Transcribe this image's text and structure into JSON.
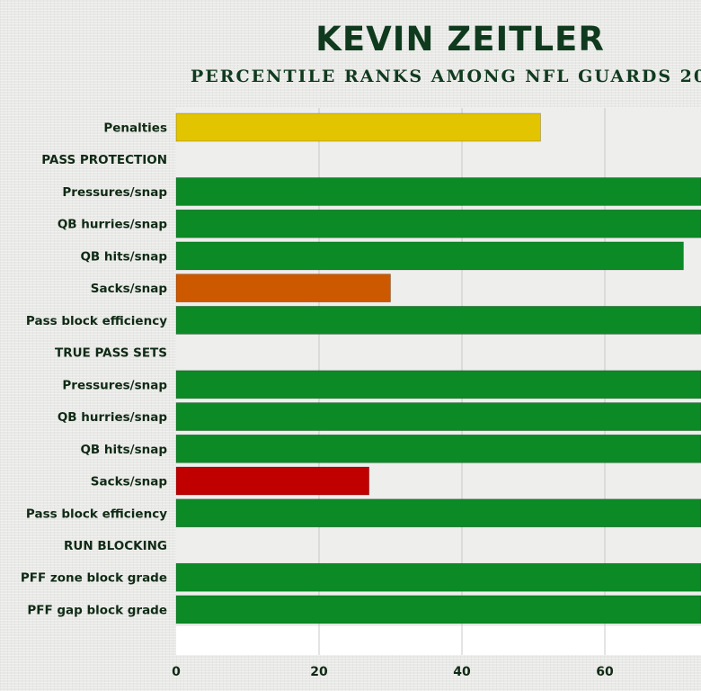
{
  "header": {
    "title": "KEVIN ZEITLER",
    "subtitle": "PERCENTILE RANKS AMONG NFL GUARDS 20"
  },
  "chart_data": {
    "type": "bar",
    "orientation": "horizontal",
    "title": "KEVIN ZEITLER",
    "subtitle": "PERCENTILE RANKS AMONG NFL GUARDS 20",
    "xlabel": "",
    "ylabel": "",
    "xlim": [
      0,
      73.5
    ],
    "x_ticks": [
      0,
      20,
      40,
      60
    ],
    "grid": true,
    "categories": [
      "Penalties",
      "PASS PROTECTION",
      "Pressures/snap",
      "QB hurries/snap",
      "QB hits/snap",
      "Sacks/snap",
      "Pass block efficiency",
      "TRUE PASS SETS",
      "Pressures/snap",
      "QB hurries/snap",
      "QB hits/snap",
      "Sacks/snap",
      "Pass block efficiency",
      "RUN BLOCKING",
      "PFF zone block grade",
      "PFF gap block grade"
    ],
    "values": [
      51,
      null,
      74,
      74,
      71,
      30,
      74,
      null,
      74,
      74,
      74,
      27,
      74,
      null,
      74,
      74
    ],
    "colors": [
      "#e2c400",
      null,
      "#0b8a26",
      "#0b8a26",
      "#0b8a26",
      "#cc5800",
      "#0b8a26",
      null,
      "#0b8a26",
      "#0b8a26",
      "#0b8a26",
      "#c00000",
      "#0b8a26",
      null,
      "#0b8a26",
      "#0b8a26"
    ]
  },
  "colors": {
    "title": "#0f3a1d",
    "label": "#0f2a14",
    "plot_background": "#ececea",
    "grid": "#c8c8c8"
  }
}
